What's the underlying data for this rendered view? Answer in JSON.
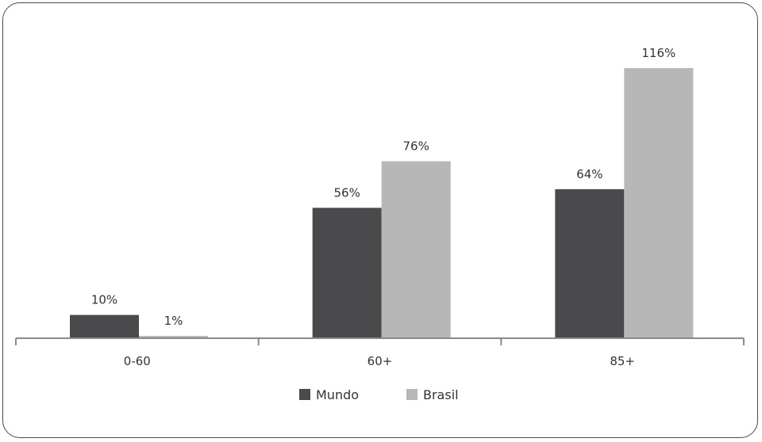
{
  "chart_data": {
    "type": "bar",
    "categories": [
      "0-60",
      "60+",
      "85+"
    ],
    "series": [
      {
        "name": "Mundo",
        "values": [
          10,
          56,
          64
        ],
        "labels": [
          "10%",
          "56%",
          "64%"
        ],
        "color": "#4a4a4c"
      },
      {
        "name": "Brasil",
        "values": [
          1,
          76,
          116
        ],
        "labels": [
          "1%",
          "76%",
          "116%"
        ],
        "color": "#b7b7b8"
      }
    ],
    "ylim": [
      0,
      125
    ],
    "grid": false,
    "legend_position": "bottom-center",
    "axis_color": "#8a8a8a"
  }
}
